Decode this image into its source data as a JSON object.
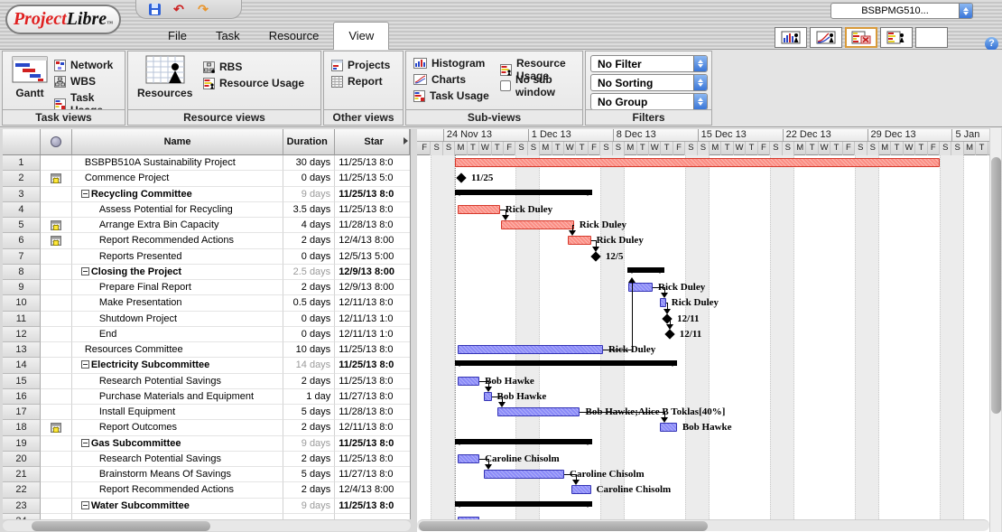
{
  "window": {
    "logo_project": "Project",
    "logo_libre": "Libre",
    "logo_tm": "TM",
    "project_selector": "BSBPMG510...",
    "help_label": "?"
  },
  "tabs": {
    "file": "File",
    "task": "Task",
    "resource": "Resource",
    "view": "View",
    "active": "View"
  },
  "ribbon": {
    "task_views": {
      "label": "Task views",
      "gantt": "Gantt",
      "network": "Network",
      "wbs": "WBS",
      "task_usage": "Task Usage"
    },
    "resource_views": {
      "label": "Resource views",
      "resources": "Resources",
      "rbs": "RBS",
      "resource_usage": "Resource Usage"
    },
    "other_views": {
      "label": "Other views",
      "projects": "Projects",
      "report": "Report"
    },
    "sub_views": {
      "label": "Sub-views",
      "histogram": "Histogram",
      "charts": "Charts",
      "task_usage": "Task Usage",
      "resource_usage": "Resource Usage",
      "no_sub_window": "No sub window"
    },
    "filters": {
      "label": "Filters",
      "filter": "No Filter",
      "sorting": "No Sorting",
      "group": "No Group"
    }
  },
  "table": {
    "columns": {
      "name": "Name",
      "duration": "Duration",
      "start": "Star"
    },
    "rows": [
      {
        "n": "1",
        "cal": false,
        "sum": false,
        "child": false,
        "name": "BSBPB510A Sustainability Project",
        "dur": "30 days",
        "start": "11/25/13 8:0"
      },
      {
        "n": "2",
        "cal": true,
        "sum": false,
        "child": false,
        "name": "Commence Project",
        "dur": "0 days",
        "start": "11/25/13 5:0"
      },
      {
        "n": "3",
        "cal": false,
        "sum": true,
        "child": false,
        "name": "Recycling Committee",
        "dur": "9 days",
        "start": "11/25/13 8:0"
      },
      {
        "n": "4",
        "cal": false,
        "sum": false,
        "child": true,
        "name": "Assess Potential for Recycling",
        "dur": "3.5 days",
        "start": "11/25/13 8:0"
      },
      {
        "n": "5",
        "cal": true,
        "sum": false,
        "child": true,
        "name": "Arrange Extra Bin Capacity",
        "dur": "4 days",
        "start": "11/28/13 8:0"
      },
      {
        "n": "6",
        "cal": true,
        "sum": false,
        "child": true,
        "name": "Report Recommended Actions",
        "dur": "2 days",
        "start": "12/4/13 8:00"
      },
      {
        "n": "7",
        "cal": false,
        "sum": false,
        "child": true,
        "name": "Reports Presented",
        "dur": "0 days",
        "start": "12/5/13 5:00"
      },
      {
        "n": "8",
        "cal": false,
        "sum": true,
        "child": false,
        "name": "Closing the Project",
        "dur": "2.5 days",
        "start": "12/9/13 8:00"
      },
      {
        "n": "9",
        "cal": false,
        "sum": false,
        "child": true,
        "name": "Prepare Final Report",
        "dur": "2 days",
        "start": "12/9/13 8:00"
      },
      {
        "n": "10",
        "cal": false,
        "sum": false,
        "child": true,
        "name": "Make Presentation",
        "dur": "0.5 days",
        "start": "12/11/13 8:0"
      },
      {
        "n": "11",
        "cal": false,
        "sum": false,
        "child": true,
        "name": "Shutdown Project",
        "dur": "0 days",
        "start": "12/11/13 1:0"
      },
      {
        "n": "12",
        "cal": false,
        "sum": false,
        "child": true,
        "name": "End",
        "dur": "0 days",
        "start": "12/11/13 1:0"
      },
      {
        "n": "13",
        "cal": false,
        "sum": false,
        "child": false,
        "name": "Resources Committee",
        "dur": "10 days",
        "start": "11/25/13 8:0"
      },
      {
        "n": "14",
        "cal": false,
        "sum": true,
        "child": false,
        "name": "Electricity Subcommittee",
        "dur": "14 days",
        "start": "11/25/13 8:0"
      },
      {
        "n": "15",
        "cal": false,
        "sum": false,
        "child": true,
        "name": "Research Potential Savings",
        "dur": "2 days",
        "start": "11/25/13 8:0"
      },
      {
        "n": "16",
        "cal": false,
        "sum": false,
        "child": true,
        "name": "Purchase Materials and Equipment",
        "dur": "1 day",
        "start": "11/27/13 8:0"
      },
      {
        "n": "17",
        "cal": false,
        "sum": false,
        "child": true,
        "name": "Install Equipment",
        "dur": "5 days",
        "start": "11/28/13 8:0"
      },
      {
        "n": "18",
        "cal": true,
        "sum": false,
        "child": true,
        "name": "Report Outcomes",
        "dur": "2 days",
        "start": "12/11/13 8:0"
      },
      {
        "n": "19",
        "cal": false,
        "sum": true,
        "child": false,
        "name": "Gas Subcommittee",
        "dur": "9 days",
        "start": "11/25/13 8:0"
      },
      {
        "n": "20",
        "cal": false,
        "sum": false,
        "child": true,
        "name": "Research Potential Savings",
        "dur": "2 days",
        "start": "11/25/13 8:0"
      },
      {
        "n": "21",
        "cal": false,
        "sum": false,
        "child": true,
        "name": "Brainstorm Means Of Savings",
        "dur": "5 days",
        "start": "11/27/13 8:0"
      },
      {
        "n": "22",
        "cal": false,
        "sum": false,
        "child": true,
        "name": "Report Recommended Actions",
        "dur": "2 days",
        "start": "12/4/13 8:00"
      },
      {
        "n": "23",
        "cal": false,
        "sum": true,
        "child": false,
        "name": "Water Subcommittee",
        "dur": "9 days",
        "start": "11/25/13 8:0"
      },
      {
        "n": "24",
        "cal": false,
        "sum": false,
        "child": true,
        "name": "",
        "dur": "",
        "start": ""
      }
    ]
  },
  "gantt": {
    "timeline": {
      "day_letters": [
        "F",
        "S",
        "S",
        "M",
        "T",
        "W",
        "T"
      ],
      "num_days": 48,
      "weeks": [
        {
          "day": 2,
          "label": "24 Nov 13"
        },
        {
          "day": 9,
          "label": "1 Dec 13"
        },
        {
          "day": 16,
          "label": "8 Dec 13"
        },
        {
          "day": 23,
          "label": "15 Dec 13"
        },
        {
          "day": 30,
          "label": "22 Dec 13"
        },
        {
          "day": 37,
          "label": "29 Dec 13"
        },
        {
          "day": 44,
          "label": "5 Jan"
        }
      ],
      "project_start_day": 3
    },
    "bars": [
      {
        "row": 1,
        "type": "red",
        "s": 3,
        "e": 43,
        "label": ""
      },
      {
        "row": 2,
        "type": "milestone",
        "s": 3.2,
        "label": "11/25"
      },
      {
        "row": 3,
        "type": "summary",
        "s": 3,
        "e": 14.3
      },
      {
        "row": 4,
        "type": "red",
        "s": 3.2,
        "e": 6.7,
        "label": "Rick Duley"
      },
      {
        "row": 5,
        "type": "red",
        "s": 6.8,
        "e": 12.8,
        "label": "Rick Duley"
      },
      {
        "row": 6,
        "type": "red",
        "s": 12.3,
        "e": 14.2,
        "label": "Rick Duley"
      },
      {
        "row": 7,
        "type": "milestone",
        "s": 14.3,
        "label": "12/5"
      },
      {
        "row": 8,
        "type": "summary",
        "s": 17.2,
        "e": 20.3
      },
      {
        "row": 9,
        "type": "blue",
        "s": 17.3,
        "e": 19.3,
        "label": "Rick Duley"
      },
      {
        "row": 10,
        "type": "blue",
        "s": 19.9,
        "e": 20.4,
        "label": "Rick Duley"
      },
      {
        "row": 11,
        "type": "milestone",
        "s": 20.2,
        "label": "12/11"
      },
      {
        "row": 12,
        "type": "milestone",
        "s": 20.4,
        "label": "12/11"
      },
      {
        "row": 13,
        "type": "blue",
        "s": 3.2,
        "e": 15.2,
        "label": "Rick Duley"
      },
      {
        "row": 14,
        "type": "summary",
        "s": 3,
        "e": 21.3
      },
      {
        "row": 15,
        "type": "blue",
        "s": 3.2,
        "e": 5,
        "label": "Bob Hawke"
      },
      {
        "row": 16,
        "type": "blue",
        "s": 5.4,
        "e": 6,
        "label": "Bob Hawke"
      },
      {
        "row": 17,
        "type": "blue",
        "s": 6.5,
        "e": 13.3,
        "label": "Bob Hawke;Alice B Toklas[40%]"
      },
      {
        "row": 18,
        "type": "blue",
        "s": 19.9,
        "e": 21.3,
        "label": "Bob Hawke"
      },
      {
        "row": 19,
        "type": "summary",
        "s": 3,
        "e": 14.3
      },
      {
        "row": 20,
        "type": "blue",
        "s": 3.2,
        "e": 5,
        "label": "Caroline Chisolm"
      },
      {
        "row": 21,
        "type": "blue",
        "s": 5.4,
        "e": 12,
        "label": "Caroline Chisolm"
      },
      {
        "row": 22,
        "type": "blue",
        "s": 12.6,
        "e": 14.2,
        "label": "Caroline Chisolm"
      },
      {
        "row": 23,
        "type": "summary",
        "s": 3,
        "e": 14.3
      },
      {
        "row": 24,
        "type": "blue",
        "s": 3.2,
        "e": 5,
        "label": ""
      }
    ],
    "links": [
      {
        "from": 4,
        "to": 5
      },
      {
        "from": 5,
        "to": 6
      },
      {
        "from": 6,
        "to": 7
      },
      {
        "from": 9,
        "to": 10
      },
      {
        "from": 10,
        "to": 11
      },
      {
        "from": 11,
        "to": 12
      },
      {
        "from": 13,
        "to": 8,
        "dir": "up"
      },
      {
        "from": 15,
        "to": 16
      },
      {
        "from": 16,
        "to": 17
      },
      {
        "from": 17,
        "to": 18
      },
      {
        "from": 20,
        "to": 21
      },
      {
        "from": 21,
        "to": 22
      }
    ],
    "colors": {
      "task_red": "#fb8d83",
      "task_red_border": "#d5392c",
      "task_blue": "#8a8af8",
      "task_blue_border": "#3434b4",
      "summary_black": "#000000",
      "weekend": "#ececec"
    }
  }
}
